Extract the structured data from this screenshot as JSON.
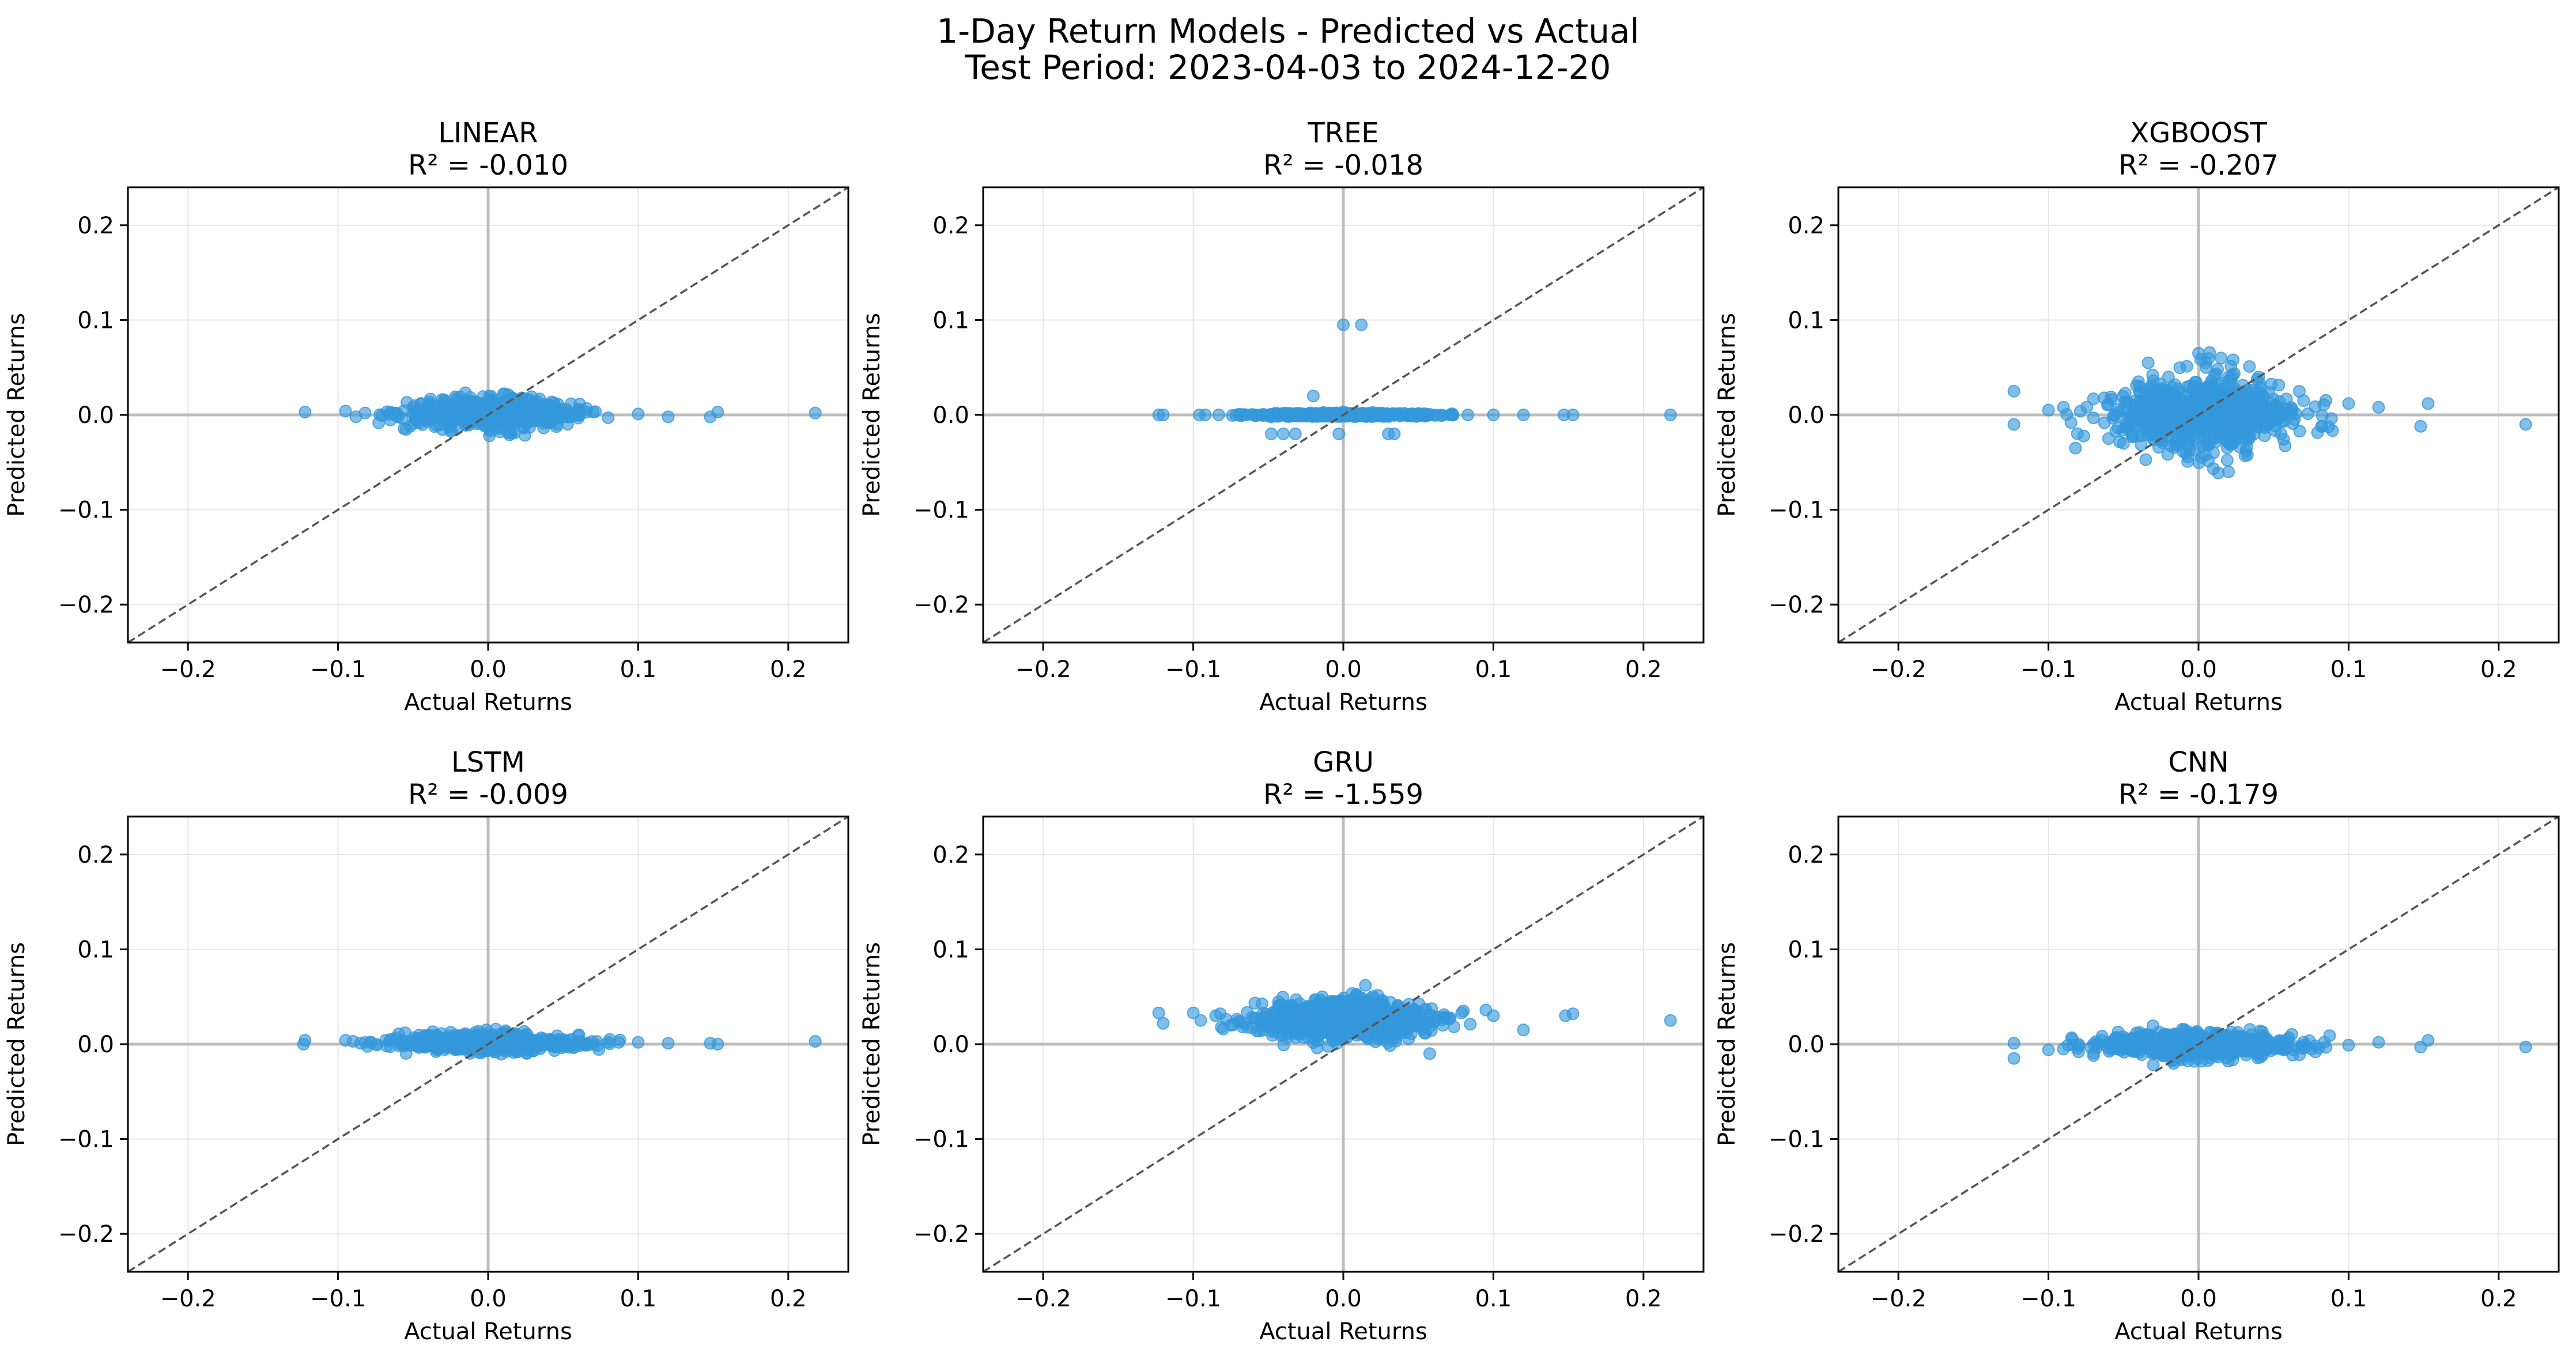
{
  "figure": {
    "title_line1": "1-Day Return Models - Predicted vs Actual",
    "title_line2": "Test Period: 2023-04-03 to 2024-12-20"
  },
  "colors": {
    "points": "#3498db",
    "diagonal": "#555555",
    "zero_lines": "#bdbdbd",
    "grid": "#e6e6e6"
  },
  "chart_data": [
    {
      "type": "scatter",
      "title": "LINEAR",
      "subtitle": "R² = -0.010",
      "xlabel": "Actual Returns",
      "ylabel": "Predicted Returns",
      "xlim": [
        -0.24,
        0.24
      ],
      "ylim": [
        -0.24,
        0.24
      ],
      "xticks": [
        -0.2,
        -0.1,
        0.0,
        0.1,
        0.2
      ],
      "yticks": [
        -0.2,
        -0.1,
        0.0,
        0.1,
        0.2
      ],
      "grid": true,
      "reference_line": "y = x",
      "points": [
        [
          -0.122,
          0.003
        ],
        [
          -0.095,
          0.004
        ],
        [
          -0.088,
          -0.002
        ],
        [
          -0.082,
          0.002
        ],
        [
          -0.065,
          0.003
        ],
        [
          -0.05,
          0.008
        ],
        [
          -0.04,
          0.01
        ],
        [
          -0.03,
          0.012
        ],
        [
          -0.02,
          0.005
        ],
        [
          -0.01,
          -0.002
        ],
        [
          0.0,
          0.008
        ],
        [
          0.01,
          0.014
        ],
        [
          0.02,
          0.01
        ],
        [
          0.03,
          0.006
        ],
        [
          0.04,
          0.002
        ],
        [
          0.05,
          -0.002
        ],
        [
          0.06,
          0.004
        ],
        [
          0.07,
          0.003
        ],
        [
          0.08,
          -0.003
        ],
        [
          0.1,
          0.001
        ],
        [
          0.12,
          -0.002
        ],
        [
          0.148,
          -0.002
        ],
        [
          0.153,
          0.003
        ],
        [
          0.218,
          0.002
        ]
      ],
      "cloud": {
        "x_min": -0.09,
        "x_max": 0.09,
        "sigma_x": 0.028,
        "y_center": 0.002,
        "y_spread": 0.008,
        "count": 650
      }
    },
    {
      "type": "scatter",
      "title": "TREE",
      "subtitle": "R² = -0.018",
      "xlabel": "Actual Returns",
      "ylabel": "Predicted Returns",
      "xlim": [
        -0.24,
        0.24
      ],
      "ylim": [
        -0.24,
        0.24
      ],
      "xticks": [
        -0.2,
        -0.1,
        0.0,
        0.1,
        0.2
      ],
      "yticks": [
        -0.2,
        -0.1,
        0.0,
        0.1,
        0.2
      ],
      "grid": true,
      "reference_line": "y = x",
      "points": [
        [
          0.0,
          0.095
        ],
        [
          0.012,
          0.095
        ],
        [
          -0.123,
          0.0
        ],
        [
          -0.12,
          0.0
        ],
        [
          -0.096,
          0.0
        ],
        [
          -0.092,
          0.0
        ],
        [
          -0.083,
          0.0
        ],
        [
          -0.045,
          0.002
        ],
        [
          -0.048,
          -0.02
        ],
        [
          -0.04,
          -0.02
        ],
        [
          -0.032,
          -0.02
        ],
        [
          -0.02,
          0.02
        ],
        [
          -0.003,
          -0.02
        ],
        [
          0.03,
          -0.02
        ],
        [
          0.034,
          -0.02
        ],
        [
          0.083,
          0.0
        ],
        [
          0.1,
          0.0
        ],
        [
          0.12,
          0.0
        ],
        [
          0.147,
          0.0
        ],
        [
          0.153,
          0.0
        ],
        [
          0.218,
          0.0
        ]
      ],
      "cloud": {
        "x_min": -0.09,
        "x_max": 0.09,
        "sigma_x": 0.03,
        "y_center": 0.0,
        "y_spread": 0.001,
        "count": 500
      }
    },
    {
      "type": "scatter",
      "title": "XGBOOST",
      "subtitle": "R² = -0.207",
      "xlabel": "Actual Returns",
      "ylabel": "Predicted Returns",
      "xlim": [
        -0.24,
        0.24
      ],
      "ylim": [
        -0.24,
        0.24
      ],
      "xticks": [
        -0.2,
        -0.1,
        0.0,
        0.1,
        0.2
      ],
      "yticks": [
        -0.2,
        -0.1,
        0.0,
        0.1,
        0.2
      ],
      "grid": true,
      "reference_line": "y = x",
      "points": [
        [
          -0.123,
          0.025
        ],
        [
          -0.123,
          -0.01
        ],
        [
          -0.1,
          0.005
        ],
        [
          -0.09,
          0.008
        ],
        [
          -0.085,
          -0.008
        ],
        [
          -0.082,
          -0.035
        ],
        [
          -0.07,
          0.017
        ],
        [
          -0.06,
          -0.025
        ],
        [
          -0.05,
          -0.03
        ],
        [
          -0.04,
          0.035
        ],
        [
          0.0,
          0.065
        ],
        [
          0.005,
          0.05
        ],
        [
          0.01,
          -0.04
        ],
        [
          0.015,
          0.06
        ],
        [
          0.02,
          -0.06
        ],
        [
          0.023,
          0.058
        ],
        [
          0.04,
          0.04
        ],
        [
          0.055,
          -0.02
        ],
        [
          0.07,
          0.015
        ],
        [
          0.082,
          -0.012
        ],
        [
          0.1,
          0.012
        ],
        [
          0.12,
          0.008
        ],
        [
          0.148,
          -0.012
        ],
        [
          0.153,
          0.012
        ],
        [
          0.218,
          -0.01
        ]
      ],
      "cloud": {
        "x_min": -0.09,
        "x_max": 0.09,
        "sigma_x": 0.03,
        "y_center": 0.0,
        "y_spread": 0.022,
        "count": 700
      }
    },
    {
      "type": "scatter",
      "title": "LSTM",
      "subtitle": "R² = -0.009",
      "xlabel": "Actual Returns",
      "ylabel": "Predicted Returns",
      "xlim": [
        -0.24,
        0.24
      ],
      "ylim": [
        -0.24,
        0.24
      ],
      "xticks": [
        -0.2,
        -0.1,
        0.0,
        0.1,
        0.2
      ],
      "yticks": [
        -0.2,
        -0.1,
        0.0,
        0.1,
        0.2
      ],
      "grid": true,
      "reference_line": "y = x",
      "points": [
        [
          -0.122,
          0.004
        ],
        [
          -0.123,
          0.0
        ],
        [
          -0.095,
          0.004
        ],
        [
          -0.09,
          0.003
        ],
        [
          -0.085,
          0.001
        ],
        [
          -0.065,
          0.005
        ],
        [
          -0.04,
          0.006
        ],
        [
          -0.02,
          0.006
        ],
        [
          0.0,
          0.007
        ],
        [
          0.02,
          0.004
        ],
        [
          0.05,
          0.003
        ],
        [
          0.08,
          0.002
        ],
        [
          0.1,
          0.002
        ],
        [
          0.12,
          0.001
        ],
        [
          0.148,
          0.001
        ],
        [
          0.153,
          0.0
        ],
        [
          0.218,
          0.003
        ]
      ],
      "cloud": {
        "x_min": -0.09,
        "x_max": 0.09,
        "sigma_x": 0.03,
        "y_center": 0.002,
        "y_spread": 0.005,
        "count": 600
      }
    },
    {
      "type": "scatter",
      "title": "GRU",
      "subtitle": "R² = -1.559",
      "xlabel": "Actual Returns",
      "ylabel": "Predicted Returns",
      "xlim": [
        -0.24,
        0.24
      ],
      "ylim": [
        -0.24,
        0.24
      ],
      "xticks": [
        -0.2,
        -0.1,
        0.0,
        0.1,
        0.2
      ],
      "yticks": [
        -0.2,
        -0.1,
        0.0,
        0.1,
        0.2
      ],
      "grid": true,
      "reference_line": "y = x",
      "points": [
        [
          -0.123,
          0.033
        ],
        [
          -0.12,
          0.022
        ],
        [
          -0.1,
          0.033
        ],
        [
          -0.095,
          0.025
        ],
        [
          -0.085,
          0.03
        ],
        [
          -0.075,
          0.02
        ],
        [
          0.08,
          0.035
        ],
        [
          0.095,
          0.036
        ],
        [
          0.1,
          0.03
        ],
        [
          0.12,
          0.015
        ],
        [
          0.148,
          0.03
        ],
        [
          0.153,
          0.032
        ],
        [
          0.218,
          0.025
        ]
      ],
      "cloud": {
        "x_min": -0.09,
        "x_max": 0.09,
        "sigma_x": 0.03,
        "y_center": 0.026,
        "y_spread": 0.011,
        "count": 900
      }
    },
    {
      "type": "scatter",
      "title": "CNN",
      "subtitle": "R² = -0.179",
      "xlabel": "Actual Returns",
      "ylabel": "Predicted Returns",
      "xlim": [
        -0.24,
        0.24
      ],
      "ylim": [
        -0.24,
        0.24
      ],
      "xticks": [
        -0.2,
        -0.1,
        0.0,
        0.1,
        0.2
      ],
      "yticks": [
        -0.2,
        -0.1,
        0.0,
        0.1,
        0.2
      ],
      "grid": true,
      "reference_line": "y = x",
      "points": [
        [
          -0.123,
          0.001
        ],
        [
          -0.123,
          -0.015
        ],
        [
          -0.1,
          -0.006
        ],
        [
          -0.09,
          -0.005
        ],
        [
          -0.08,
          -0.008
        ],
        [
          -0.07,
          -0.012
        ],
        [
          -0.06,
          -0.004
        ],
        [
          0.07,
          0.002
        ],
        [
          0.08,
          -0.004
        ],
        [
          0.1,
          -0.001
        ],
        [
          0.12,
          0.002
        ],
        [
          0.148,
          -0.003
        ],
        [
          0.153,
          0.004
        ],
        [
          0.218,
          -0.003
        ]
      ],
      "cloud": {
        "x_min": -0.09,
        "x_max": 0.09,
        "sigma_x": 0.03,
        "y_center": -0.001,
        "y_spread": 0.007,
        "count": 650
      }
    }
  ]
}
